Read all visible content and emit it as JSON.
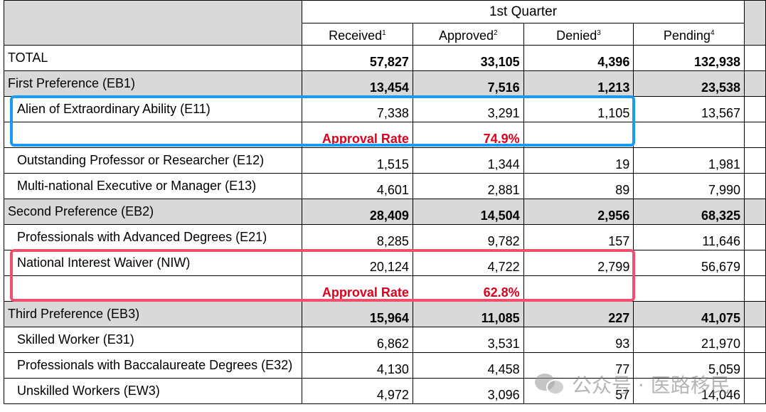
{
  "header": {
    "quarter": "1st Quarter",
    "columns": [
      {
        "label": "Received",
        "note": "1"
      },
      {
        "label": "Approved",
        "note": "2"
      },
      {
        "label": "Denied",
        "note": "3"
      },
      {
        "label": "Pending",
        "note": "4"
      }
    ]
  },
  "rows": {
    "total": {
      "label": "TOTAL",
      "received": "57,827",
      "approved": "33,105",
      "denied": "4,396",
      "pending": "132,938"
    },
    "eb1": {
      "label": "First Preference (EB1)",
      "received": "13,454",
      "approved": "7,516",
      "denied": "1,213",
      "pending": "23,538"
    },
    "e11": {
      "label": "Alien of Extraordinary Ability (E11)",
      "received": "7,338",
      "approved": "3,291",
      "denied": "1,105",
      "pending": "13,567"
    },
    "e11_rate": {
      "label": "Approval Rate",
      "value": "74.9%"
    },
    "e12": {
      "label": "Outstanding Professor or Researcher (E12)",
      "received": "1,515",
      "approved": "1,344",
      "denied": "19",
      "pending": "1,981"
    },
    "e13": {
      "label": "Multi-national Executive or Manager (E13)",
      "received": "4,601",
      "approved": "2,881",
      "denied": "89",
      "pending": "7,990"
    },
    "eb2": {
      "label": "Second Preference (EB2)",
      "received": "28,409",
      "approved": "14,504",
      "denied": "2,956",
      "pending": "68,325"
    },
    "e21": {
      "label": "Professionals with Advanced Degrees (E21)",
      "received": "8,285",
      "approved": "9,782",
      "denied": "157",
      "pending": "11,646"
    },
    "niw": {
      "label": "National Interest Waiver (NIW)",
      "received": "20,124",
      "approved": "4,722",
      "denied": "2,799",
      "pending": "56,679"
    },
    "niw_rate": {
      "label": "Approval Rate",
      "value": "62.8%"
    },
    "eb3": {
      "label": "Third Preference (EB3)",
      "received": "15,964",
      "approved": "11,085",
      "denied": "227",
      "pending": "41,075"
    },
    "e31": {
      "label": "Skilled Worker (E31)",
      "received": "6,862",
      "approved": "3,531",
      "denied": "93",
      "pending": "21,970"
    },
    "e32": {
      "label": "Professionals with Baccalaureate Degrees (E32)",
      "received": "4,130",
      "approved": "4,458",
      "denied": "77",
      "pending": "5,059"
    },
    "ew3": {
      "label": "Unskilled Workers (EW3)",
      "received": "4,972",
      "approved": "3,096",
      "denied": "57",
      "pending": "14,046"
    }
  },
  "watermark": {
    "text": "公众号 · 医路移民",
    "icon": "wechat-icon"
  },
  "colors": {
    "header_grey": "#d9d9d9",
    "rate_red": "#e0001b",
    "highlight_blue": "#1a9af0",
    "highlight_pink": "#f0506e"
  }
}
